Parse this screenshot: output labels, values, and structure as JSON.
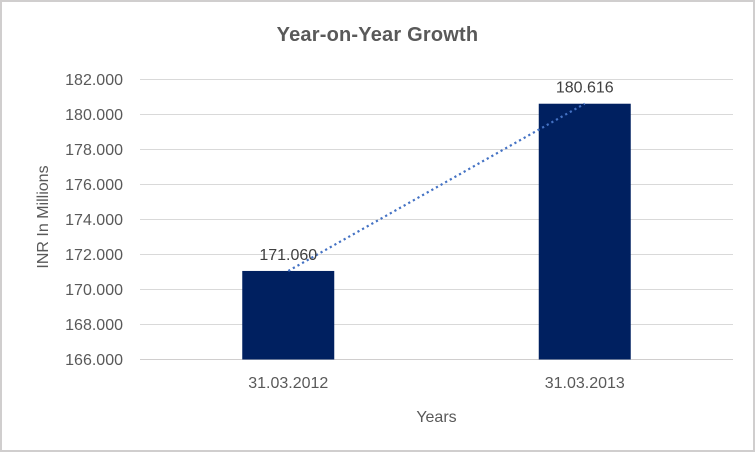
{
  "chart_data": {
    "type": "bar",
    "title": "Year-on-Year Growth",
    "xlabel": "Years",
    "ylabel": "INR In Millions",
    "categories": [
      "31.03.2012",
      "31.03.2013"
    ],
    "series": [
      {
        "name": "INR In Millions",
        "values": [
          171.06,
          180.616
        ],
        "value_labels": [
          "171.060",
          "180.616"
        ]
      }
    ],
    "y_ticks": [
      {
        "value": 166,
        "label": "166.000"
      },
      {
        "value": 168,
        "label": "168.000"
      },
      {
        "value": 170,
        "label": "170.000"
      },
      {
        "value": 172,
        "label": "172.000"
      },
      {
        "value": 174,
        "label": "174.000"
      },
      {
        "value": 176,
        "label": "176.000"
      },
      {
        "value": 178,
        "label": "178.000"
      },
      {
        "value": 180,
        "label": "180.000"
      },
      {
        "value": 182,
        "label": "182.000"
      }
    ],
    "ylim": [
      166,
      182
    ],
    "grid": true,
    "legend": false,
    "trendline": {
      "type": "linear",
      "style": "dotted",
      "color": "#4472c4"
    },
    "colors": {
      "bar": "#002060",
      "gridline": "#d9d9d9",
      "axis_line": "#d0cece",
      "tick_text": "#595959",
      "axis_title_text": "#595959",
      "title_text": "#595959",
      "data_label_text": "#404040",
      "border": "#d0cece",
      "background": "#ffffff"
    }
  }
}
